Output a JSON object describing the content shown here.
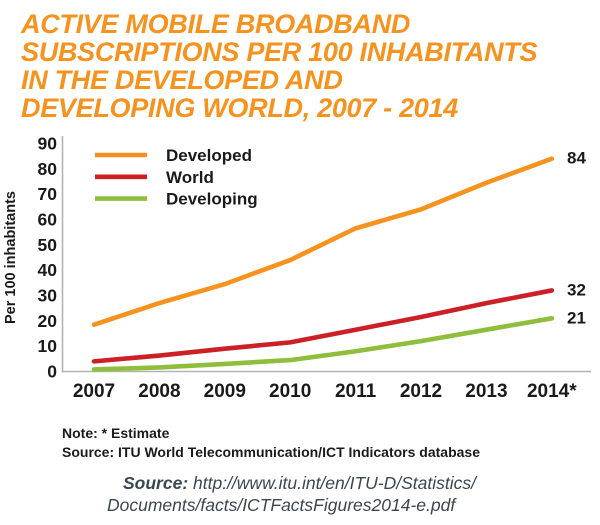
{
  "title": {
    "lines": [
      "ACTIVE MOBILE BROADBAND",
      "SUBSCRIPTIONS PER 100 INHABITANTS",
      "IN THE DEVELOPED AND",
      "DEVELOPING WORLD, 2007 - 2014"
    ],
    "color": "#F6921E"
  },
  "chart_data": {
    "type": "line",
    "x": [
      "2007",
      "2008",
      "2009",
      "2010",
      "2011",
      "2012",
      "2013",
      "2014*"
    ],
    "series": [
      {
        "name": "Developed",
        "color": "#F6921E",
        "values": [
          18.5,
          27,
          34.5,
          44,
          56.5,
          64,
          74.5,
          84
        ],
        "end_label": "84"
      },
      {
        "name": "World",
        "color": "#CC2027",
        "values": [
          4,
          6.3,
          9,
          11.5,
          16.5,
          21.5,
          27,
          32
        ],
        "end_label": "32"
      },
      {
        "name": "Developing",
        "color": "#8FBE3C",
        "values": [
          0.8,
          1.6,
          3,
          4.5,
          8,
          12,
          16.5,
          21
        ],
        "end_label": "21"
      }
    ],
    "ylabel": "Per 100 inhabitants",
    "xlabel": "",
    "ylim": [
      0,
      90
    ],
    "yticks": [
      0,
      10,
      20,
      30,
      40,
      50,
      60,
      70,
      80,
      90
    ],
    "grid": false,
    "legend_position": "top-left",
    "axis_color": "#B3B3B3"
  },
  "notes": {
    "note": "Note: * Estimate",
    "source": "Source: ITU World Telecommunication/ICT Indicators database"
  },
  "citation": {
    "prefix": "Source:",
    "url_line1": " http://www.itu.int/en/ITU-D/Statistics/",
    "url_line2": "Documents/facts/ICTFactsFigures2014-e.pdf",
    "color": "#3B4750"
  }
}
